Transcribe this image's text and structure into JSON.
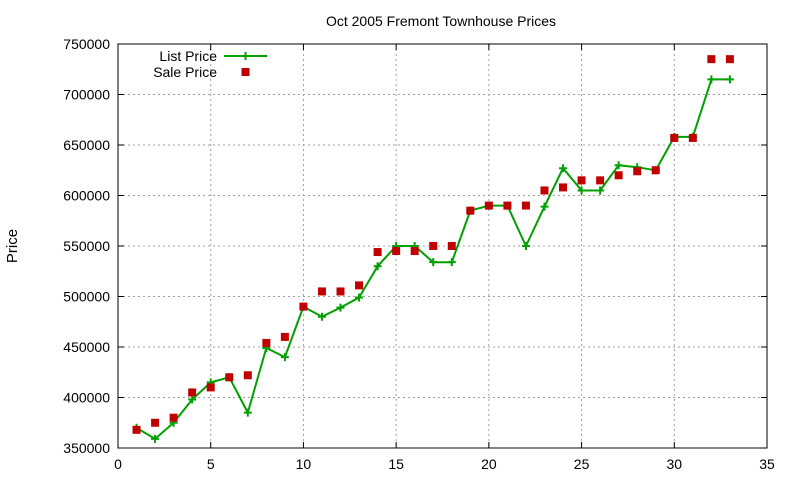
{
  "chart_data": {
    "type": "line",
    "title": "Oct 2005 Fremont Townhouse Prices",
    "xlabel": "",
    "ylabel": "Price",
    "xlim": [
      0,
      35
    ],
    "ylim": [
      350000,
      750000
    ],
    "xticks": [
      0,
      5,
      10,
      15,
      20,
      25,
      30,
      35
    ],
    "yticks": [
      350000,
      400000,
      450000,
      500000,
      550000,
      600000,
      650000,
      700000,
      750000
    ],
    "grid": true,
    "legend_position": "top-left",
    "series": [
      {
        "name": "List Price",
        "style": "linespoints",
        "marker": "plus",
        "color": "#00a000",
        "x": [
          1,
          2,
          3,
          4,
          5,
          6,
          7,
          8,
          9,
          10,
          11,
          12,
          13,
          14,
          15,
          16,
          17,
          18,
          19,
          20,
          21,
          22,
          23,
          24,
          25,
          26,
          27,
          28,
          29,
          30,
          31,
          32,
          33
        ],
        "y": [
          370000,
          359000,
          375000,
          398000,
          415000,
          420000,
          385000,
          449000,
          440000,
          490000,
          480000,
          489000,
          499000,
          530000,
          550000,
          550000,
          534000,
          534000,
          585000,
          590000,
          590000,
          550000,
          589000,
          627000,
          605000,
          605000,
          630000,
          628000,
          625000,
          658000,
          658000,
          715000,
          715000
        ]
      },
      {
        "name": "Sale Price",
        "style": "points",
        "marker": "square",
        "color": "#c00000",
        "x": [
          1,
          2,
          3,
          4,
          5,
          6,
          7,
          8,
          9,
          10,
          11,
          12,
          13,
          14,
          15,
          16,
          17,
          18,
          19,
          20,
          21,
          22,
          23,
          24,
          25,
          26,
          27,
          28,
          29,
          30,
          31,
          32,
          33
        ],
        "y": [
          368000,
          375000,
          380000,
          405000,
          410000,
          420000,
          422000,
          454000,
          460000,
          490000,
          505000,
          505000,
          511000,
          544000,
          545000,
          545000,
          550000,
          550000,
          585000,
          590000,
          590000,
          590000,
          605000,
          608000,
          615000,
          615000,
          620000,
          624000,
          625000,
          657000,
          657000,
          735000,
          735000
        ]
      }
    ]
  }
}
